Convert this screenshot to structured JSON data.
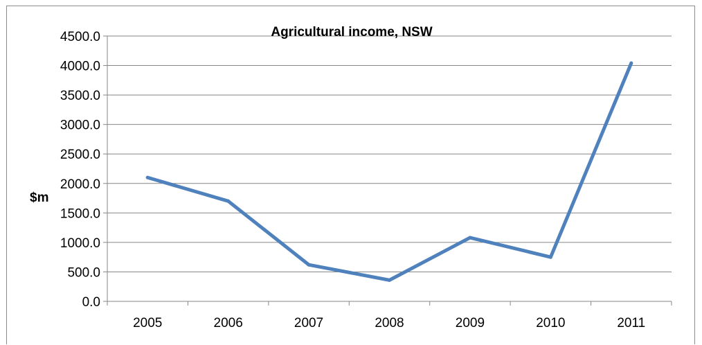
{
  "chart_data": {
    "type": "line",
    "title": "Agricultural income, NSW",
    "xlabel": "",
    "ylabel": "$m",
    "categories": [
      "2005",
      "2006",
      "2007",
      "2008",
      "2009",
      "2010",
      "2011"
    ],
    "series": [
      {
        "values": [
          2100,
          1700,
          620,
          360,
          1080,
          750,
          4040
        ],
        "color": "#4f81bd"
      }
    ],
    "ylim": [
      0,
      4500
    ],
    "y_ticks": [
      "0.0",
      "500.0",
      "1000.0",
      "1500.0",
      "2000.0",
      "2500.0",
      "3000.0",
      "3500.0",
      "4000.0",
      "4500.0"
    ],
    "grid": true,
    "legend": "none"
  }
}
